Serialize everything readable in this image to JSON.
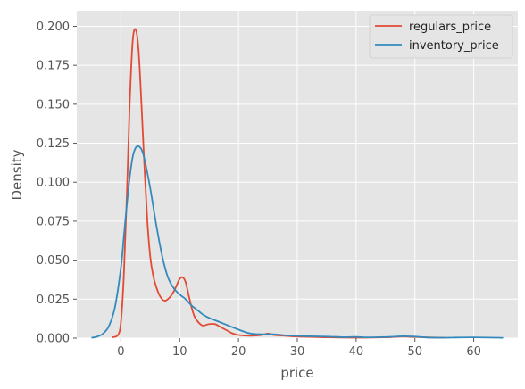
{
  "chart_data": {
    "type": "line",
    "xlabel": "price",
    "ylabel": "Density",
    "xlim": [
      -7.5,
      67.5
    ],
    "ylim": [
      0,
      0.21
    ],
    "xticks": [
      "0",
      "10",
      "20",
      "30",
      "40",
      "50",
      "60"
    ],
    "yticks": [
      "0.000",
      "0.025",
      "0.050",
      "0.075",
      "0.100",
      "0.125",
      "0.150",
      "0.175",
      "0.200"
    ],
    "grid": true,
    "legend": "top-right",
    "series": [
      {
        "name": "regulars_price",
        "color": "#E24A33",
        "x": [
          -1.5,
          -0.5,
          0,
          0.5,
          1,
          1.5,
          2,
          2.5,
          3,
          3.5,
          4,
          4.5,
          5,
          5.5,
          6,
          6.5,
          7,
          7.5,
          8,
          8.5,
          9,
          9.5,
          10,
          10.5,
          11,
          11.5,
          12,
          12.5,
          13,
          13.5,
          14,
          15,
          16,
          17,
          18,
          19,
          20,
          22,
          24,
          25,
          26,
          28,
          30,
          32,
          35,
          40,
          45,
          48,
          50,
          55
        ],
        "y": [
          0.0005,
          0.002,
          0.01,
          0.04,
          0.09,
          0.15,
          0.19,
          0.198,
          0.185,
          0.15,
          0.11,
          0.075,
          0.052,
          0.04,
          0.033,
          0.028,
          0.025,
          0.024,
          0.025,
          0.027,
          0.03,
          0.034,
          0.038,
          0.039,
          0.036,
          0.028,
          0.02,
          0.014,
          0.011,
          0.009,
          0.008,
          0.009,
          0.009,
          0.007,
          0.005,
          0.003,
          0.002,
          0.0015,
          0.002,
          0.003,
          0.002,
          0.0015,
          0.001,
          0.0008,
          0.0005,
          0.0003,
          0.0005,
          0.001,
          0.0007,
          0.0002
        ]
      },
      {
        "name": "inventory_price",
        "color": "#348ABD",
        "x": [
          -5,
          -4,
          -3,
          -2,
          -1,
          0,
          0.5,
          1,
          1.5,
          2,
          2.5,
          3,
          3.5,
          4,
          5,
          6,
          7,
          8,
          9,
          10,
          11,
          12,
          13,
          14,
          15,
          16,
          17,
          18,
          20,
          22,
          24,
          26,
          28,
          30,
          32,
          35,
          38,
          40,
          42,
          45,
          48,
          50,
          52,
          55,
          60,
          65
        ],
        "y": [
          0.0002,
          0.001,
          0.003,
          0.008,
          0.02,
          0.045,
          0.065,
          0.085,
          0.103,
          0.116,
          0.122,
          0.123,
          0.121,
          0.115,
          0.096,
          0.073,
          0.053,
          0.039,
          0.032,
          0.028,
          0.025,
          0.021,
          0.018,
          0.015,
          0.013,
          0.0115,
          0.01,
          0.0085,
          0.0055,
          0.003,
          0.0025,
          0.0025,
          0.0018,
          0.0015,
          0.0012,
          0.001,
          0.0006,
          0.0008,
          0.0005,
          0.0007,
          0.0012,
          0.001,
          0.0004,
          0.0003,
          0.0005,
          0.0002
        ]
      }
    ]
  }
}
